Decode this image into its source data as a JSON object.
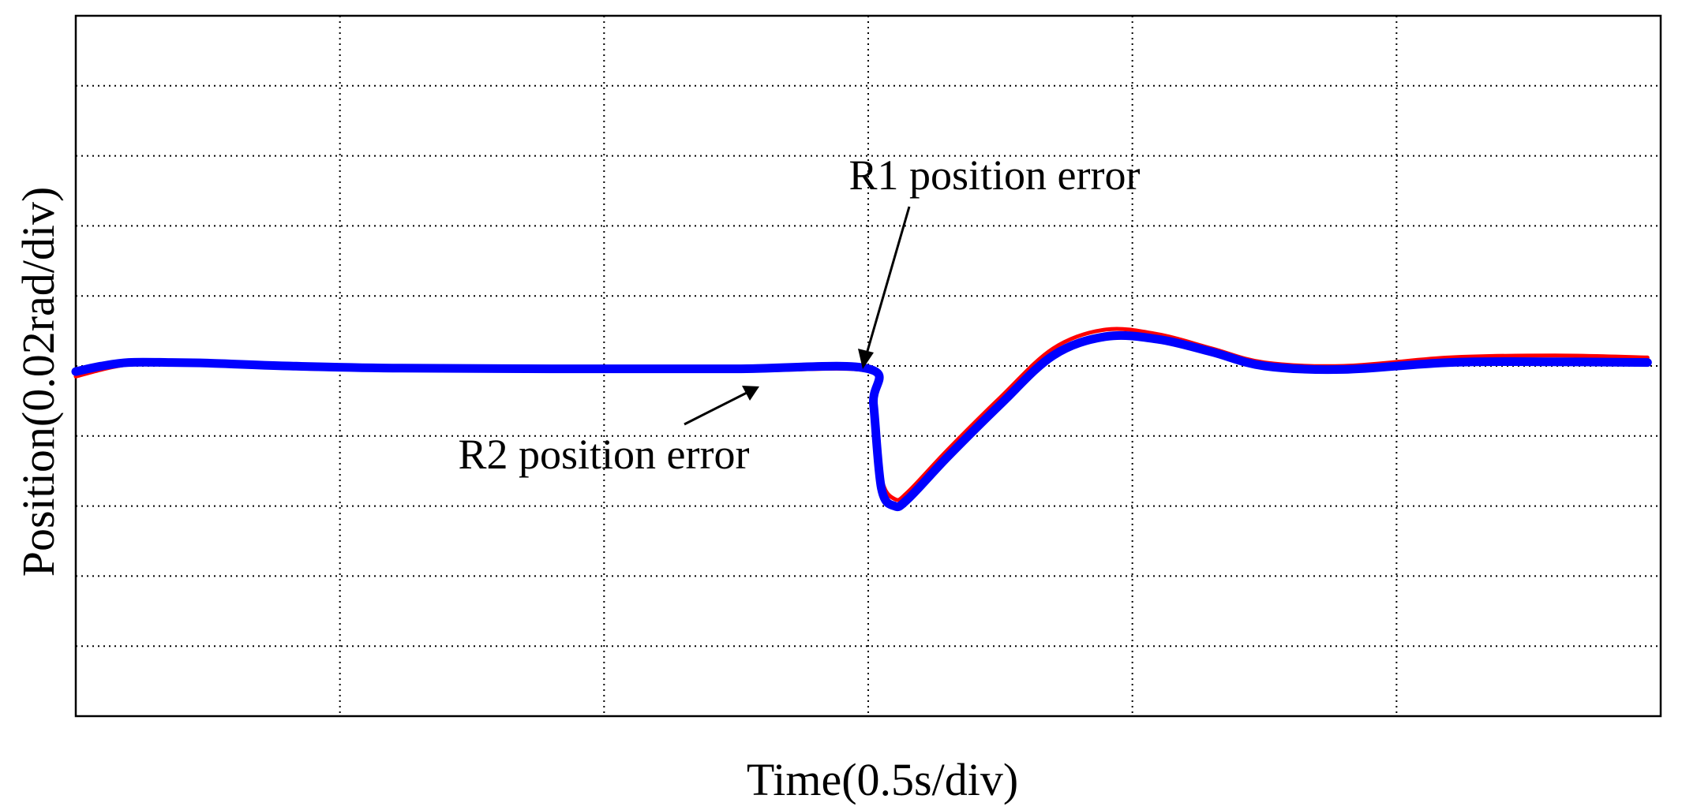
{
  "chart_data": {
    "type": "line",
    "xlabel": "Time(0.5s/div)",
    "ylabel": "Position(0.02rad/div)",
    "x_divisions": 6,
    "y_divisions": 10,
    "xlim": [
      0,
      6
    ],
    "ylim": [
      -5,
      5
    ],
    "grid": true,
    "grid_style": "dotted",
    "annotations": [
      {
        "text": "R1 position error",
        "series": "R1 position error"
      },
      {
        "text": "R2 position error",
        "series": "R2 position error"
      }
    ],
    "series": [
      {
        "name": "R1 position error",
        "color": "#ff0000",
        "x": [
          0,
          0.1,
          0.2,
          0.35,
          0.5,
          0.8,
          1.2,
          1.8,
          2.5,
          3.0,
          3.02,
          3.05,
          3.1,
          3.15,
          3.3,
          3.5,
          3.7,
          3.9,
          4.1,
          4.3,
          4.5,
          4.8,
          5.2,
          5.6,
          5.95
        ],
        "y": [
          -0.15,
          -0.05,
          0.02,
          0.05,
          0.03,
          -0.03,
          -0.06,
          -0.07,
          -0.07,
          -0.07,
          -0.5,
          -1.6,
          -1.9,
          -1.8,
          -1.2,
          -0.45,
          0.25,
          0.52,
          0.45,
          0.25,
          0.05,
          0.0,
          0.12,
          0.15,
          0.12
        ]
      },
      {
        "name": "R2 position error",
        "color": "#0000ff",
        "x": [
          0,
          0.1,
          0.2,
          0.35,
          0.5,
          0.8,
          1.2,
          1.8,
          2.5,
          3.0,
          3.02,
          3.05,
          3.1,
          3.15,
          3.3,
          3.5,
          3.7,
          3.9,
          4.1,
          4.3,
          4.5,
          4.8,
          5.2,
          5.6,
          5.95
        ],
        "y": [
          -0.08,
          0.0,
          0.05,
          0.05,
          0.04,
          0.0,
          -0.03,
          -0.04,
          -0.04,
          -0.04,
          -0.55,
          -1.75,
          -2.0,
          -1.9,
          -1.3,
          -0.55,
          0.15,
          0.42,
          0.38,
          0.2,
          0.0,
          -0.05,
          0.05,
          0.06,
          0.05
        ]
      }
    ]
  }
}
